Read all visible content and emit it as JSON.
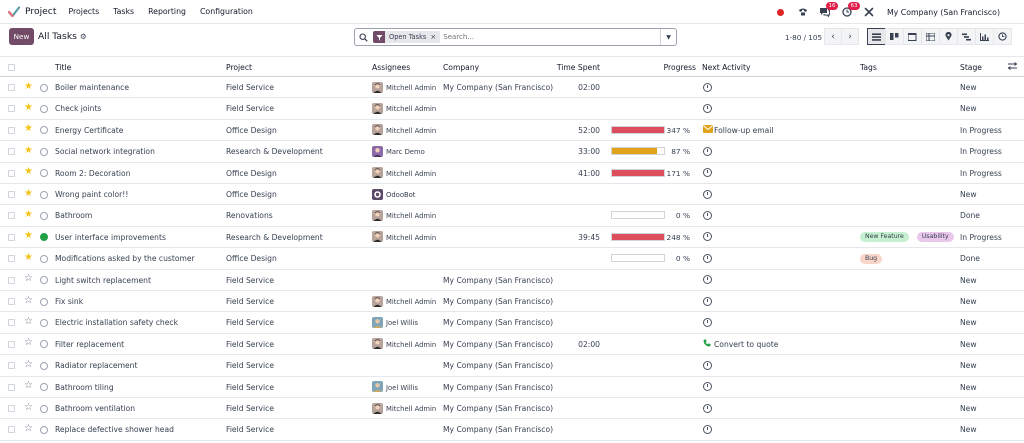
{
  "topnav": {
    "app_name": "Project",
    "menus": [
      "Projects",
      "Tasks",
      "Reporting",
      "Configuration"
    ],
    "messages_count": "16",
    "activities_count": "63",
    "company": "My Company (San Francisco)"
  },
  "control": {
    "new_label": "New",
    "breadcrumb": "All Tasks",
    "facet_label": "Open Tasks",
    "search_placeholder": "Search...",
    "pager": "1-80 / 105"
  },
  "columns": {
    "title": "Title",
    "project": "Project",
    "assignees": "Assignees",
    "company": "Company",
    "time_spent": "Time Spent",
    "progress": "Progress",
    "next_activity": "Next Activity",
    "tags": "Tags",
    "stage": "Stage"
  },
  "colors": {
    "brand": "#714b67",
    "progress_over": "#dc4d5e",
    "progress_warn": "#e0a31a",
    "star": "#f3c518",
    "done_state": "#22a046"
  },
  "tasks": [
    {
      "title": "Boiler maintenance",
      "project": "Field Service",
      "assignee": "Mitchell Admin",
      "avatar": "mitchell",
      "company": "My Company (San Francisco)",
      "time": "02:00",
      "progress": null,
      "activity_icon": "clock",
      "activity": "",
      "tags": [],
      "stage": "New",
      "starred": true,
      "state_done": false
    },
    {
      "title": "Check joints",
      "project": "Field Service",
      "assignee": "Mitchell Admin",
      "avatar": "mitchell",
      "company": "",
      "time": "",
      "progress": null,
      "activity_icon": "clock",
      "activity": "",
      "tags": [],
      "stage": "New",
      "starred": true,
      "state_done": false
    },
    {
      "title": "Energy Certificate",
      "project": "Office Design",
      "assignee": "Mitchell Admin",
      "avatar": "mitchell",
      "company": "",
      "time": "52:00",
      "progress": 347,
      "progress_label": "347 %",
      "activity_icon": "email",
      "activity": "Follow-up email",
      "tags": [],
      "stage": "In Progress",
      "starred": true,
      "state_done": false
    },
    {
      "title": "Social network integration",
      "project": "Research & Development",
      "assignee": "Marc Demo",
      "avatar": "marc",
      "company": "",
      "time": "33:00",
      "progress": 87,
      "progress_label": "87 %",
      "activity_icon": "clock",
      "activity": "",
      "tags": [],
      "stage": "In Progress",
      "starred": true,
      "state_done": false
    },
    {
      "title": "Room 2: Decoration",
      "project": "Office Design",
      "assignee": "Mitchell Admin",
      "avatar": "mitchell",
      "company": "",
      "time": "41:00",
      "progress": 171,
      "progress_label": "171 %",
      "activity_icon": "clock",
      "activity": "",
      "tags": [],
      "stage": "In Progress",
      "starred": true,
      "state_done": false
    },
    {
      "title": "Wrong paint color!!",
      "project": "Office Design",
      "assignee": "OdooBot",
      "avatar": "odoobot",
      "company": "",
      "time": "",
      "progress": null,
      "activity_icon": "clock",
      "activity": "",
      "tags": [],
      "stage": "New",
      "starred": true,
      "state_done": false
    },
    {
      "title": "Bathroom",
      "project": "Renovations",
      "assignee": "Mitchell Admin",
      "avatar": "mitchell",
      "company": "",
      "time": "",
      "progress": 0,
      "progress_label": "0 %",
      "activity_icon": "clock",
      "activity": "",
      "tags": [],
      "stage": "Done",
      "starred": true,
      "state_done": false
    },
    {
      "title": "User interface improvements",
      "project": "Research & Development",
      "assignee": "Mitchell Admin",
      "avatar": "mitchell",
      "company": "",
      "time": "39:45",
      "progress": 248,
      "progress_label": "248 %",
      "activity_icon": "clock",
      "activity": "",
      "tags": [
        {
          "label": "New Feature",
          "color": "#c6f0cf"
        },
        {
          "label": "Usability",
          "color": "#e9c8ec"
        }
      ],
      "stage": "In Progress",
      "starred": true,
      "state_done": true
    },
    {
      "title": "Modifications asked by the customer",
      "project": "Office Design",
      "assignee": "",
      "avatar": "",
      "company": "",
      "time": "",
      "progress": 0,
      "progress_label": "0 %",
      "activity_icon": "clock",
      "activity": "",
      "tags": [
        {
          "label": "Bug",
          "color": "#f7d5c7"
        }
      ],
      "stage": "Done",
      "starred": true,
      "state_done": false
    },
    {
      "title": "Light switch replacement",
      "project": "Field Service",
      "assignee": "",
      "avatar": "",
      "company": "My Company (San Francisco)",
      "time": "",
      "progress": null,
      "activity_icon": "clock",
      "activity": "",
      "tags": [],
      "stage": "New",
      "starred": false,
      "state_done": false
    },
    {
      "title": "Fix sink",
      "project": "Field Service",
      "assignee": "Mitchell Admin",
      "avatar": "mitchell",
      "company": "My Company (San Francisco)",
      "time": "",
      "progress": null,
      "activity_icon": "clock",
      "activity": "",
      "tags": [],
      "stage": "New",
      "starred": false,
      "state_done": false
    },
    {
      "title": "Electric installation safety check",
      "project": "Field Service",
      "assignee": "Joel Willis",
      "avatar": "joel",
      "company": "My Company (San Francisco)",
      "time": "",
      "progress": null,
      "activity_icon": "clock",
      "activity": "",
      "tags": [],
      "stage": "New",
      "starred": false,
      "state_done": false
    },
    {
      "title": "Filter replacement",
      "project": "Field Service",
      "assignee": "Mitchell Admin",
      "avatar": "mitchell",
      "company": "My Company (San Francisco)",
      "time": "02:00",
      "progress": null,
      "activity_icon": "phone",
      "activity": "Convert to quote",
      "tags": [],
      "stage": "New",
      "starred": false,
      "state_done": false
    },
    {
      "title": "Radiator replacement",
      "project": "Field Service",
      "assignee": "",
      "avatar": "",
      "company": "My Company (San Francisco)",
      "time": "",
      "progress": null,
      "activity_icon": "clock",
      "activity": "",
      "tags": [],
      "stage": "New",
      "starred": false,
      "state_done": false
    },
    {
      "title": "Bathroom tiling",
      "project": "Field Service",
      "assignee": "Joel Willis",
      "avatar": "joel",
      "company": "My Company (San Francisco)",
      "time": "",
      "progress": null,
      "activity_icon": "clock",
      "activity": "",
      "tags": [],
      "stage": "New",
      "starred": false,
      "state_done": false
    },
    {
      "title": "Bathroom ventilation",
      "project": "Field Service",
      "assignee": "Mitchell Admin",
      "avatar": "mitchell",
      "company": "My Company (San Francisco)",
      "time": "",
      "progress": null,
      "activity_icon": "clock",
      "activity": "",
      "tags": [],
      "stage": "New",
      "starred": false,
      "state_done": false
    },
    {
      "title": "Replace defective shower head",
      "project": "Field Service",
      "assignee": "",
      "avatar": "",
      "company": "My Company (San Francisco)",
      "time": "",
      "progress": null,
      "activity_icon": "clock",
      "activity": "",
      "tags": [],
      "stage": "New",
      "starred": false,
      "state_done": false
    }
  ]
}
